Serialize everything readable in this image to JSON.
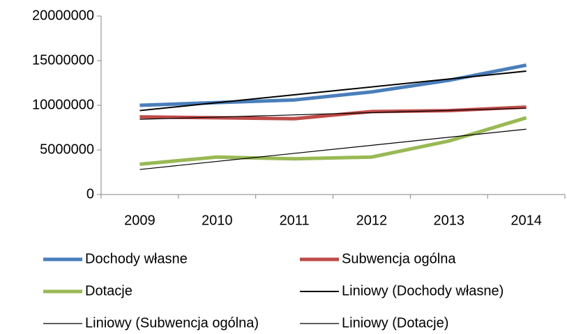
{
  "chart_data": {
    "type": "line",
    "categories": [
      "2009",
      "2010",
      "2011",
      "2012",
      "2013",
      "2014"
    ],
    "series": [
      {
        "name": "Dochody własne",
        "color": "#4a7ebb",
        "values": [
          10000000,
          10300000,
          10600000,
          11500000,
          12800000,
          14500000
        ],
        "trendline": {
          "name": "Liniowy (Dochody własne)",
          "color": "#000000",
          "width": 2
        }
      },
      {
        "name": "Subwencja ogólna",
        "color": "#be4b48",
        "values": [
          8700000,
          8600000,
          8500000,
          9300000,
          9400000,
          9800000
        ],
        "trendline": {
          "name": "Liniowy (Subwencja ogólna)",
          "color": "#000000",
          "width": 1.2
        }
      },
      {
        "name": "Dotacje",
        "color": "#98b954",
        "values": [
          3400000,
          4200000,
          4000000,
          4200000,
          6000000,
          8600000
        ],
        "trendline": {
          "name": "Liniowy (Dotacje)",
          "color": "#000000",
          "width": 1.2
        }
      }
    ],
    "ylim": [
      0,
      20000000
    ],
    "yticks": [
      0,
      5000000,
      10000000,
      15000000,
      20000000
    ],
    "grid": false
  }
}
